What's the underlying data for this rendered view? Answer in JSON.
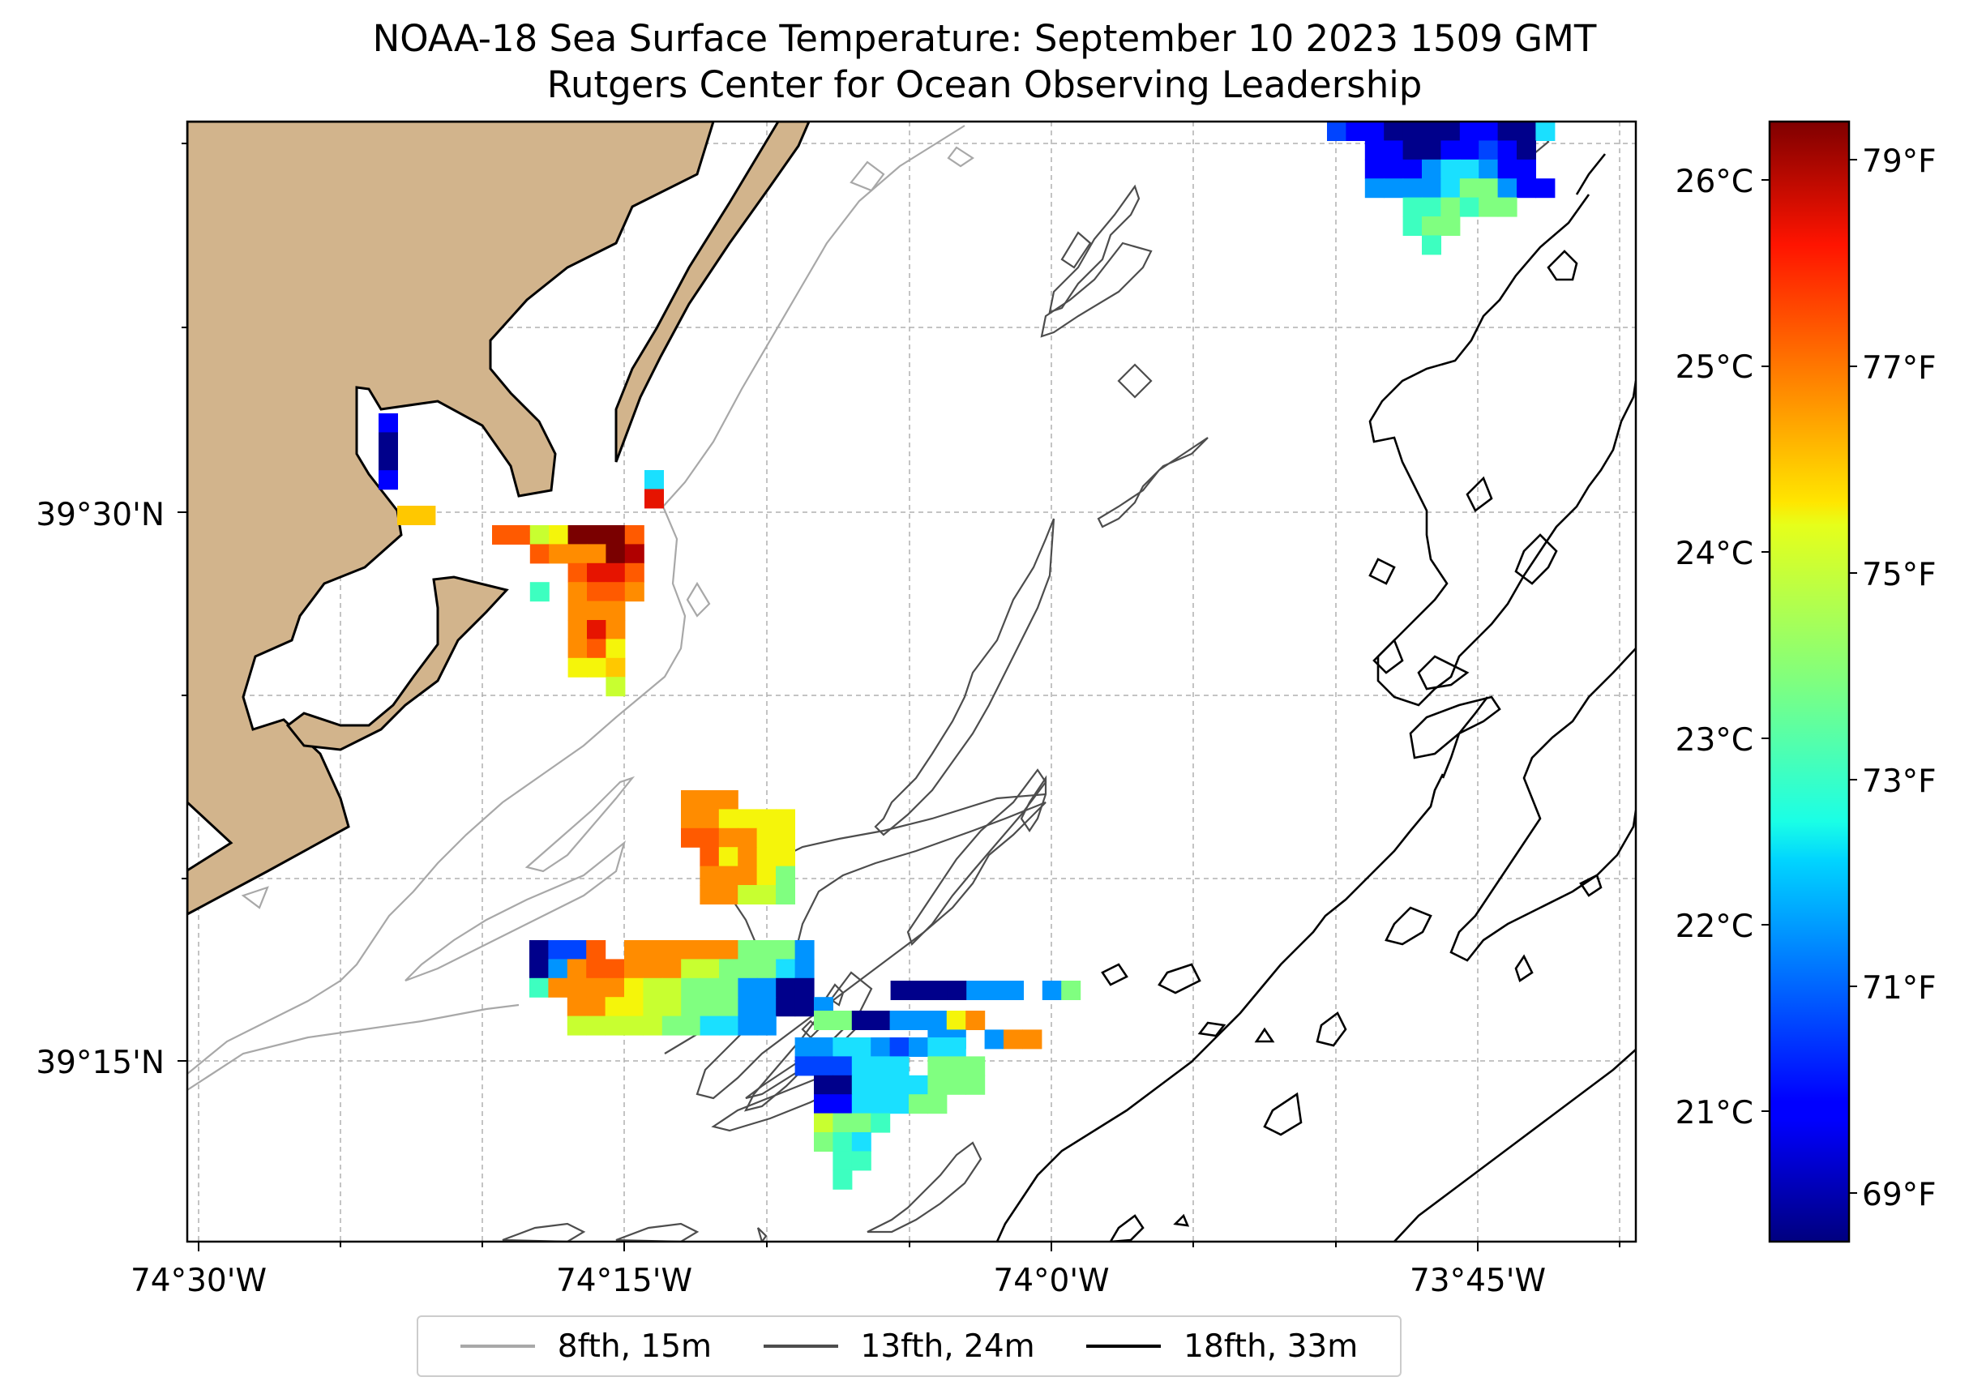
{
  "title": "NOAA-18 Sea Surface Temperature: September 10 2023 1509 GMT",
  "subtitle": "Rutgers Center for Ocean Observing Leadership",
  "colors": {
    "land": "#d2b48c",
    "coast": "#000000",
    "grid": "#b0b0b0",
    "isobath_8fth": "#a8a8a8",
    "isobath_13fth": "#4d4d4d",
    "isobath_18fth": "#000000",
    "colormap": "jet"
  },
  "map": {
    "lon_ticks": [
      "74°30'W",
      "74°15'W",
      "74°0'W",
      "73°45'W"
    ],
    "lat_ticks": [
      "39°30'N",
      "39°15'N"
    ],
    "grid": true
  },
  "colorbar": {
    "celsius_ticks": [
      "26°C",
      "25°C",
      "24°C",
      "23°C",
      "22°C",
      "21°C"
    ],
    "fahrenheit_ticks": [
      "79°F",
      "77°F",
      "75°F",
      "73°F",
      "71°F",
      "69°F"
    ],
    "range_c": [
      20.4,
      26.4
    ]
  },
  "legend": [
    {
      "label": "8fth, 15m",
      "color": "#a8a8a8"
    },
    {
      "label": "13fth, 24m",
      "color": "#4d4d4d"
    },
    {
      "label": "18fth, 33m",
      "color": "#000000"
    }
  ]
}
